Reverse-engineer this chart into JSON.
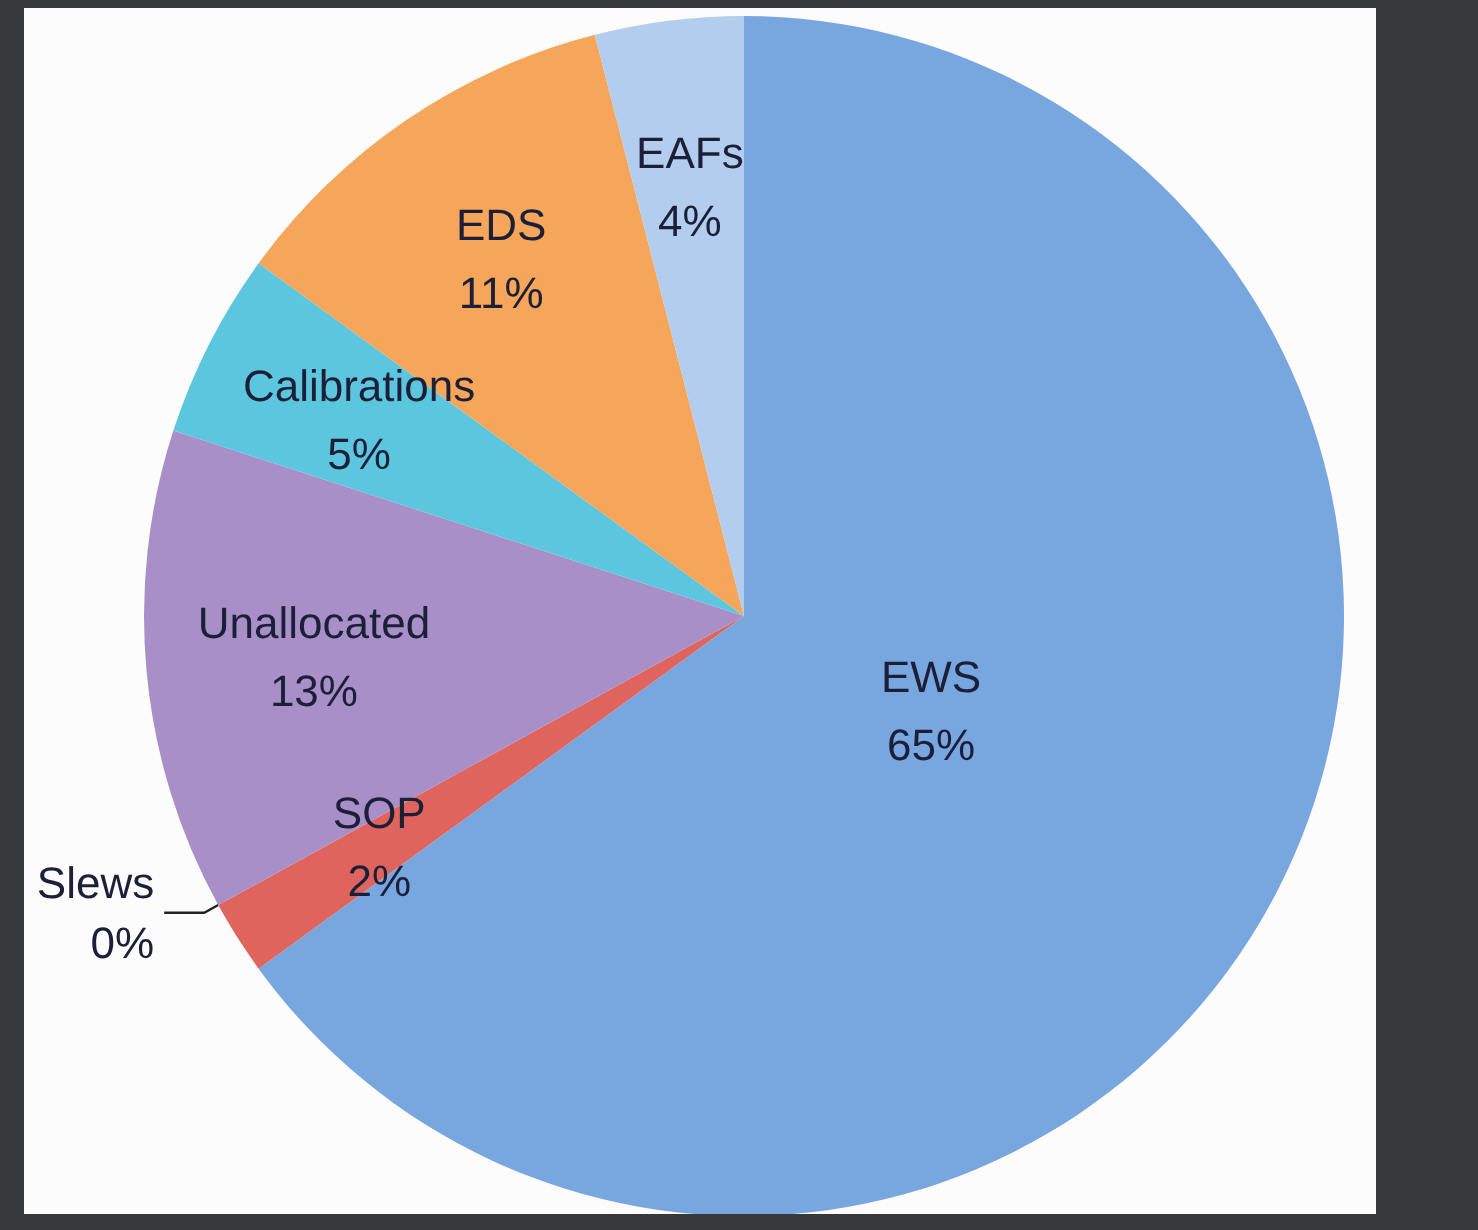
{
  "chart_data": {
    "type": "pie",
    "categories": [
      "EWS",
      "SOP",
      "Slews",
      "Unallocated",
      "Calibrations",
      "EDS",
      "EAFs"
    ],
    "values": [
      65,
      2,
      0,
      13,
      5,
      11,
      4
    ],
    "colors": [
      "#78a6df",
      "#e0645e",
      "#9dc35a",
      "#a98fc8",
      "#5cc6df",
      "#f6a65a",
      "#b3cdef"
    ],
    "value_labels": [
      "65%",
      "2%",
      "0%",
      "13%",
      "5%",
      "11%",
      "4%"
    ]
  }
}
